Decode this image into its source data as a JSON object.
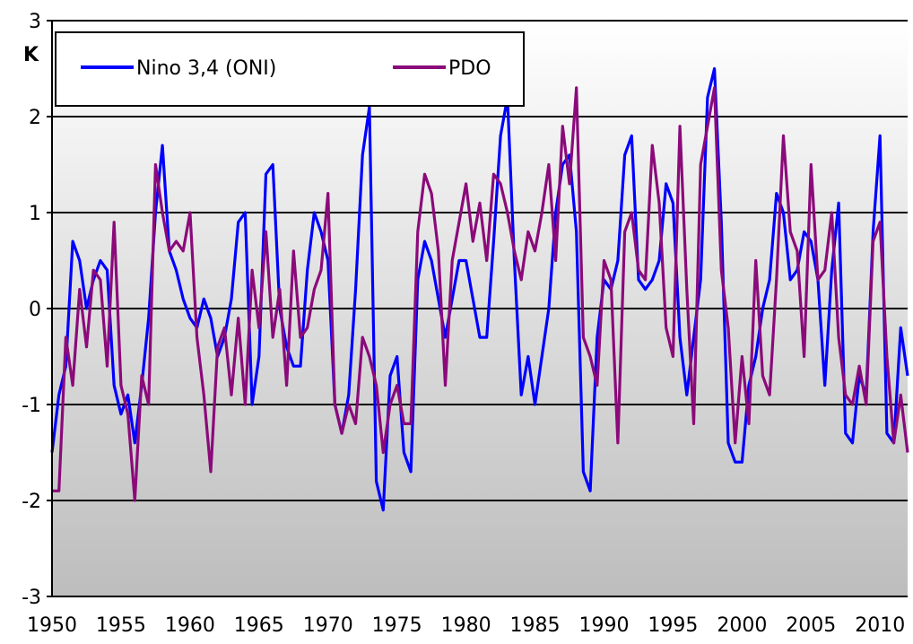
{
  "chart_data": {
    "type": "line",
    "title": "",
    "xlabel": "",
    "ylabel": "K",
    "xlim": [
      1950,
      2012
    ],
    "ylim": [
      -3,
      3
    ],
    "x_ticks": [
      1950,
      1955,
      1960,
      1965,
      1970,
      1975,
      1980,
      1985,
      1990,
      1995,
      2000,
      2005,
      2010
    ],
    "x_tick_labels": [
      "1950",
      "1955",
      "1960",
      "1965",
      "1970",
      "1975",
      "1980",
      "1985",
      "1990",
      "1995",
      "2000",
      "2005",
      "2010"
    ],
    "y_ticks": [
      -3,
      -2,
      -1,
      0,
      1,
      2,
      3
    ],
    "y_tick_labels": [
      "-3",
      "-2",
      "-1",
      "0",
      "1",
      "2",
      "3"
    ],
    "grid": "horizontal",
    "background": "vertical gradient white to gray",
    "legend": {
      "placement": "top-left"
    },
    "series": [
      {
        "name": "Nino 3,4 (ONI)",
        "color": "#0000ff",
        "x": [
          1950.0,
          1950.5,
          1951.0,
          1951.5,
          1952.0,
          1952.5,
          1953.0,
          1953.5,
          1954.0,
          1954.5,
          1955.0,
          1955.5,
          1956.0,
          1956.5,
          1957.0,
          1957.5,
          1958.0,
          1958.5,
          1959.0,
          1959.5,
          1960.0,
          1960.5,
          1961.0,
          1961.5,
          1962.0,
          1962.5,
          1963.0,
          1963.5,
          1964.0,
          1964.5,
          1965.0,
          1965.5,
          1966.0,
          1966.5,
          1967.0,
          1967.5,
          1968.0,
          1968.5,
          1969.0,
          1969.5,
          1970.0,
          1970.5,
          1971.0,
          1971.5,
          1972.0,
          1972.5,
          1973.0,
          1973.5,
          1974.0,
          1974.5,
          1975.0,
          1975.5,
          1976.0,
          1976.5,
          1977.0,
          1977.5,
          1978.0,
          1978.5,
          1979.0,
          1979.5,
          1980.0,
          1980.5,
          1981.0,
          1981.5,
          1982.0,
          1982.5,
          1983.0,
          1983.5,
          1984.0,
          1984.5,
          1985.0,
          1985.5,
          1986.0,
          1986.5,
          1987.0,
          1987.5,
          1988.0,
          1988.5,
          1989.0,
          1989.5,
          1990.0,
          1990.5,
          1991.0,
          1991.5,
          1992.0,
          1992.5,
          1993.0,
          1993.5,
          1994.0,
          1994.5,
          1995.0,
          1995.5,
          1996.0,
          1996.5,
          1997.0,
          1997.5,
          1998.0,
          1998.5,
          1999.0,
          1999.5,
          2000.0,
          2000.5,
          2001.0,
          2001.5,
          2002.0,
          2002.5,
          2003.0,
          2003.5,
          2004.0,
          2004.5,
          2005.0,
          2005.5,
          2006.0,
          2006.5,
          2007.0,
          2007.5,
          2008.0,
          2008.5,
          2009.0,
          2009.5,
          2010.0,
          2010.5,
          2011.0,
          2011.5,
          2012.0
        ],
        "values": [
          -1.5,
          -0.9,
          -0.6,
          0.7,
          0.5,
          0.0,
          0.3,
          0.5,
          0.4,
          -0.8,
          -1.1,
          -0.9,
          -1.4,
          -0.8,
          -0.1,
          1.0,
          1.7,
          0.6,
          0.4,
          0.1,
          -0.1,
          -0.2,
          0.1,
          -0.1,
          -0.5,
          -0.3,
          0.1,
          0.9,
          1.0,
          -1.0,
          -0.5,
          1.4,
          1.5,
          0.0,
          -0.4,
          -0.6,
          -0.6,
          0.4,
          1.0,
          0.8,
          0.5,
          -1.0,
          -1.3,
          -0.9,
          0.2,
          1.6,
          2.1,
          -1.8,
          -2.1,
          -0.7,
          -0.5,
          -1.5,
          -1.7,
          0.3,
          0.7,
          0.5,
          0.1,
          -0.3,
          0.1,
          0.5,
          0.5,
          0.1,
          -0.3,
          -0.3,
          0.7,
          1.8,
          2.2,
          0.5,
          -0.9,
          -0.5,
          -1.0,
          -0.5,
          0.0,
          1.0,
          1.5,
          1.6,
          0.8,
          -1.7,
          -1.9,
          -0.3,
          0.3,
          0.2,
          0.5,
          1.6,
          1.8,
          0.3,
          0.2,
          0.3,
          0.5,
          1.3,
          1.1,
          -0.3,
          -0.9,
          -0.3,
          0.3,
          2.2,
          2.5,
          0.9,
          -1.4,
          -1.6,
          -1.6,
          -0.8,
          -0.5,
          0.0,
          0.3,
          1.2,
          1.0,
          0.3,
          0.4,
          0.8,
          0.7,
          0.3,
          -0.8,
          0.4,
          1.1,
          -1.3,
          -1.4,
          -0.7,
          -0.9,
          0.8,
          1.8,
          -1.3,
          -1.4,
          -0.2,
          -0.7
        ]
      },
      {
        "name": "PDO",
        "color": "#8b0a7a",
        "x": [
          1950.0,
          1950.5,
          1951.0,
          1951.5,
          1952.0,
          1952.5,
          1953.0,
          1953.5,
          1954.0,
          1954.5,
          1955.0,
          1955.5,
          1956.0,
          1956.5,
          1957.0,
          1957.5,
          1958.0,
          1958.5,
          1959.0,
          1959.5,
          1960.0,
          1960.5,
          1961.0,
          1961.5,
          1962.0,
          1962.5,
          1963.0,
          1963.5,
          1964.0,
          1964.5,
          1965.0,
          1965.5,
          1966.0,
          1966.5,
          1967.0,
          1967.5,
          1968.0,
          1968.5,
          1969.0,
          1969.5,
          1970.0,
          1970.5,
          1971.0,
          1971.5,
          1972.0,
          1972.5,
          1973.0,
          1973.5,
          1974.0,
          1974.5,
          1975.0,
          1975.5,
          1976.0,
          1976.5,
          1977.0,
          1977.5,
          1978.0,
          1978.5,
          1979.0,
          1979.5,
          1980.0,
          1980.5,
          1981.0,
          1981.5,
          1982.0,
          1982.5,
          1983.0,
          1983.5,
          1984.0,
          1984.5,
          1985.0,
          1985.5,
          1986.0,
          1986.5,
          1987.0,
          1987.5,
          1988.0,
          1988.5,
          1989.0,
          1989.5,
          1990.0,
          1990.5,
          1991.0,
          1991.5,
          1992.0,
          1992.5,
          1993.0,
          1993.5,
          1994.0,
          1994.5,
          1995.0,
          1995.5,
          1996.0,
          1996.5,
          1997.0,
          1997.5,
          1998.0,
          1998.5,
          1999.0,
          1999.5,
          2000.0,
          2000.5,
          2001.0,
          2001.5,
          2002.0,
          2002.5,
          2003.0,
          2003.5,
          2004.0,
          2004.5,
          2005.0,
          2005.5,
          2006.0,
          2006.5,
          2007.0,
          2007.5,
          2008.0,
          2008.5,
          2009.0,
          2009.5,
          2010.0,
          2010.5,
          2011.0,
          2011.5,
          2012.0
        ],
        "values": [
          -1.9,
          -1.9,
          -0.3,
          -0.8,
          0.2,
          -0.4,
          0.4,
          0.3,
          -0.6,
          0.9,
          -0.8,
          -1.1,
          -2.0,
          -0.7,
          -1.0,
          1.5,
          1.0,
          0.6,
          0.7,
          0.6,
          1.0,
          -0.3,
          -0.9,
          -1.7,
          -0.4,
          -0.2,
          -0.9,
          -0.1,
          -1.0,
          0.4,
          -0.2,
          0.8,
          -0.3,
          0.2,
          -0.8,
          0.6,
          -0.3,
          -0.2,
          0.2,
          0.4,
          1.2,
          -1.0,
          -1.3,
          -1.0,
          -1.2,
          -0.3,
          -0.5,
          -0.8,
          -1.5,
          -1.0,
          -0.8,
          -1.2,
          -1.2,
          0.8,
          1.4,
          1.2,
          0.6,
          -0.8,
          0.5,
          0.9,
          1.3,
          0.7,
          1.1,
          0.5,
          1.4,
          1.3,
          1.0,
          0.6,
          0.3,
          0.8,
          0.6,
          1.0,
          1.5,
          0.5,
          1.9,
          1.3,
          2.3,
          -0.3,
          -0.5,
          -0.8,
          0.5,
          0.3,
          -1.4,
          0.8,
          1.0,
          0.4,
          0.3,
          1.7,
          1.1,
          -0.2,
          -0.5,
          1.9,
          0.2,
          -1.2,
          1.5,
          1.9,
          2.3,
          0.4,
          -0.2,
          -1.4,
          -0.5,
          -1.2,
          0.5,
          -0.7,
          -0.9,
          0.3,
          1.8,
          0.8,
          0.6,
          -0.5,
          1.5,
          0.3,
          0.4,
          1.0,
          -0.3,
          -0.9,
          -1.0,
          -0.6,
          -1.0,
          0.7,
          0.9,
          -0.5,
          -1.4,
          -0.9,
          -1.5
        ]
      }
    ]
  }
}
